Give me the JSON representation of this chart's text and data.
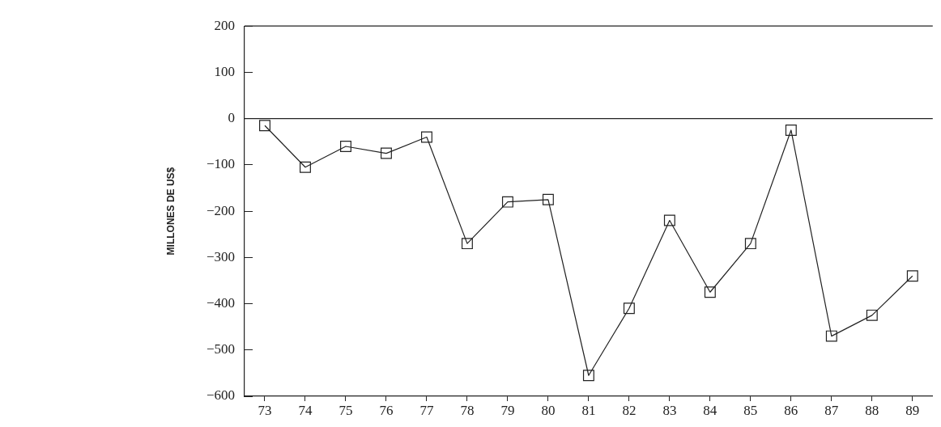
{
  "chart_data": {
    "type": "line",
    "ylabel": "MILLONES DE US$",
    "categories": [
      "73",
      "74",
      "75",
      "76",
      "77",
      "78",
      "79",
      "80",
      "81",
      "82",
      "83",
      "84",
      "85",
      "86",
      "87",
      "88",
      "89"
    ],
    "series": [
      {
        "color": "#222222",
        "values": [
          -15,
          -105,
          -60,
          -75,
          -40,
          -270,
          -180,
          -175,
          -555,
          -410,
          -220,
          -375,
          -270,
          -25,
          -470,
          -425,
          -340
        ]
      }
    ],
    "ylim": [
      -600,
      200
    ],
    "yticks": [
      -600,
      -500,
      -400,
      -300,
      -200,
      -100,
      0,
      100,
      200
    ],
    "ref_lines": [
      {
        "axis": "y",
        "value": 0,
        "color": "#222222"
      }
    ],
    "grid": false,
    "legend": false,
    "marker": "square",
    "line_style": "solid"
  }
}
